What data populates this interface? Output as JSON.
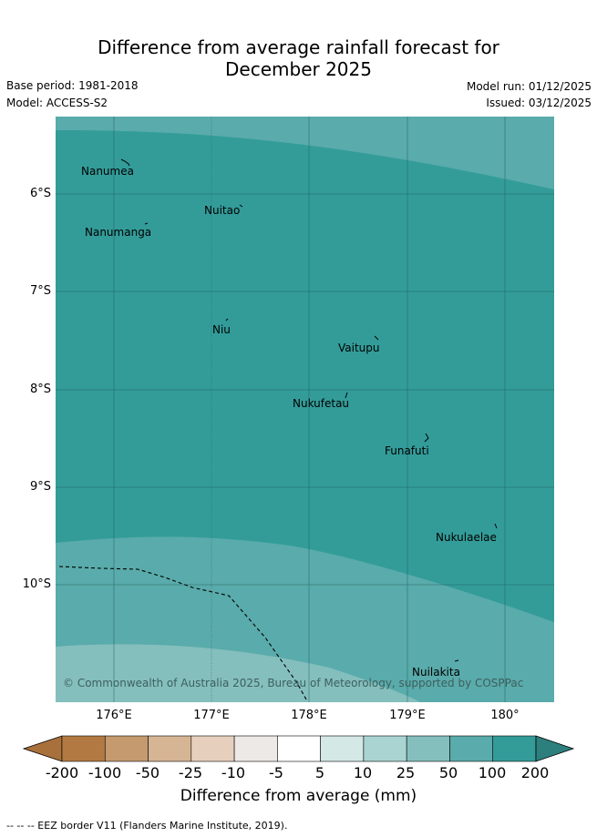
{
  "title": {
    "line1": "Difference from average rainfall forecast for",
    "line2": "December 2025"
  },
  "meta": {
    "base_period": "Base period: 1981-2018",
    "model": "Model: ACCESS-S2",
    "model_run": "Model run: 01/12/2025",
    "issued": "Issued: 03/12/2025"
  },
  "map": {
    "latitude_labels": [
      "6°S",
      "7°S",
      "8°S",
      "9°S",
      "10°S"
    ],
    "longitude_labels": [
      "176°E",
      "177°E",
      "178°E",
      "179°E",
      "180°"
    ],
    "islands": [
      {
        "name": "Nanumea"
      },
      {
        "name": "Nuitao"
      },
      {
        "name": "Nanumanga"
      },
      {
        "name": "Niu"
      },
      {
        "name": "Vaitupu"
      },
      {
        "name": "Nukufetau"
      },
      {
        "name": "Funafuti"
      },
      {
        "name": "Nukulaelae"
      },
      {
        "name": "Nuilakita"
      }
    ],
    "copyright": "© Commonwealth of Australia 2025, Bureau of Meteorology, supported by COSPPac",
    "colors": {
      "band_100_200": "#339c99",
      "band_50_100": "#5aabab",
      "band_25_50": "#84bfbd"
    }
  },
  "colorbar": {
    "ticks": [
      "-200",
      "-100",
      "-50",
      "-25",
      "-10",
      "-5",
      "5",
      "10",
      "25",
      "50",
      "100",
      "200"
    ],
    "colors": [
      "#a8703b",
      "#b27a42",
      "#c49a6e",
      "#d6b594",
      "#e6d0bd",
      "#ede9e6",
      "#ffffff",
      "#d4e8e6",
      "#aad4d2",
      "#84bfbd",
      "#5aabab",
      "#339c99",
      "#2c7f7c"
    ],
    "title": "Difference from average (mm)"
  },
  "legend": {
    "eez": "--  --  -- EEZ border V11 (Flanders Marine Institute, 2019)."
  }
}
